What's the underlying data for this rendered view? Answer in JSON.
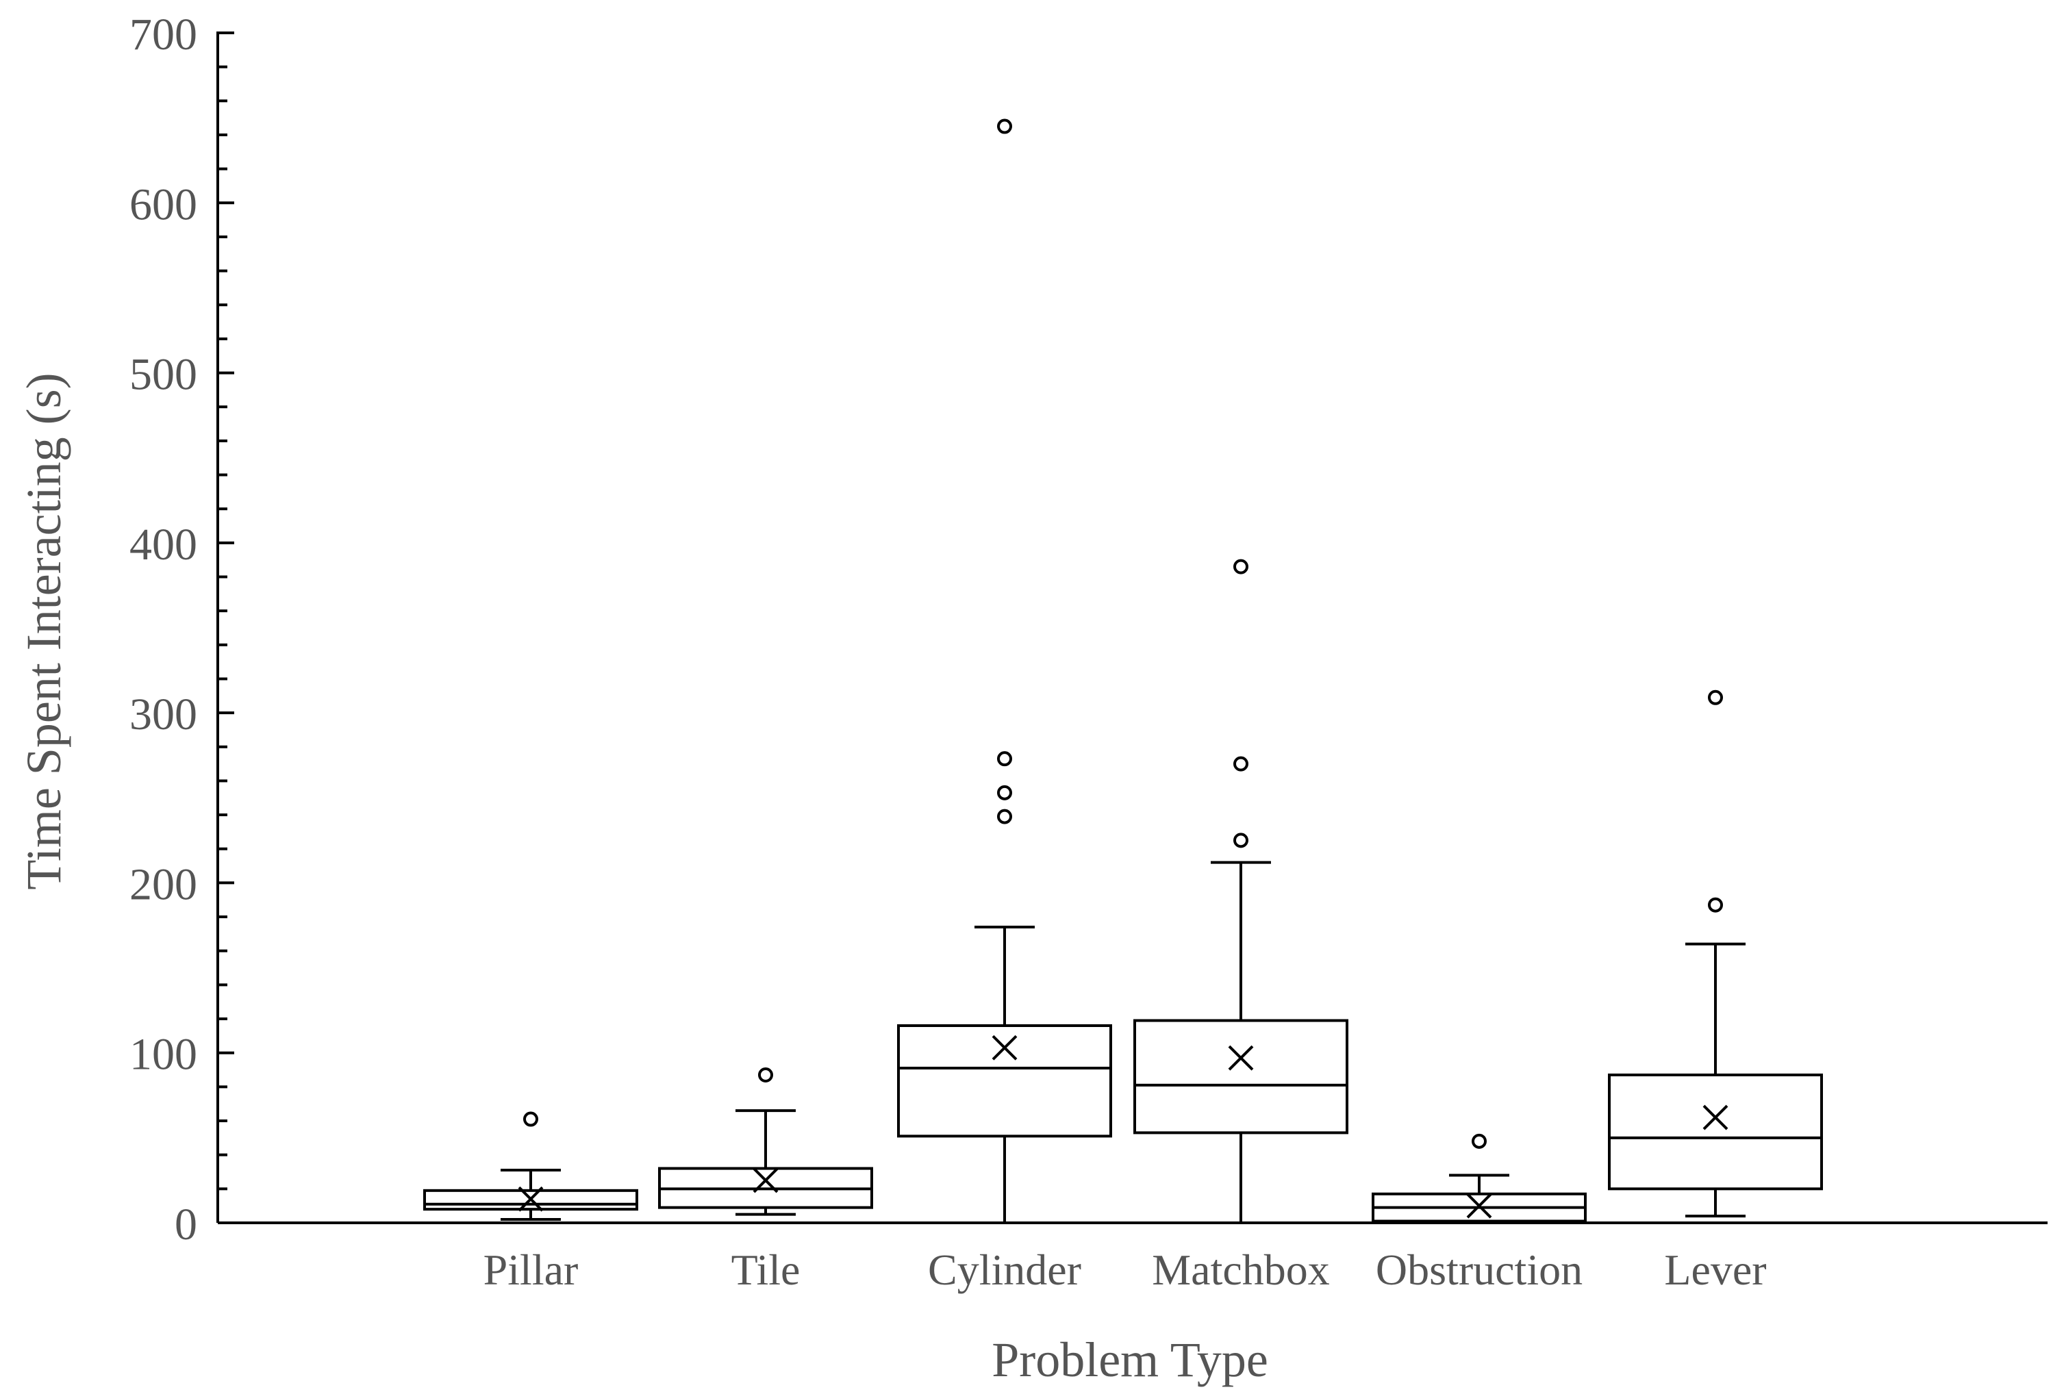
{
  "chart_data": {
    "type": "boxplot",
    "title": "",
    "xlabel": "Problem Type",
    "ylabel": "Time Spent Interacting (s)",
    "ylim": [
      0,
      700
    ],
    "yticks": [
      0,
      100,
      200,
      300,
      400,
      500,
      600,
      700
    ],
    "grid": false,
    "categories": [
      "Pillar",
      "Tile",
      "Cylinder",
      "Matchbox",
      "Obstruction",
      "Lever"
    ],
    "boxes": [
      {
        "category": "Pillar",
        "whisker_low": 2,
        "q1": 8,
        "median": 11,
        "q3": 19,
        "whisker_high": 31,
        "mean": 14,
        "outliers": [
          61
        ]
      },
      {
        "category": "Tile",
        "whisker_low": 5,
        "q1": 9,
        "median": 20,
        "q3": 32,
        "whisker_high": 66,
        "mean": 25,
        "outliers": [
          87
        ]
      },
      {
        "category": "Cylinder",
        "whisker_low": 0,
        "q1": 51,
        "median": 91,
        "q3": 116,
        "whisker_high": 174,
        "mean": 103,
        "outliers": [
          239,
          253,
          273,
          645
        ]
      },
      {
        "category": "Matchbox",
        "whisker_low": 0,
        "q1": 53,
        "median": 81,
        "q3": 119,
        "whisker_high": 212,
        "mean": 97,
        "outliers": [
          225,
          270,
          386
        ]
      },
      {
        "category": "Obstruction",
        "whisker_low": 0,
        "q1": 1,
        "median": 9,
        "q3": 17,
        "whisker_high": 28,
        "mean": 10,
        "outliers": [
          48
        ]
      },
      {
        "category": "Lever",
        "whisker_low": 4,
        "q1": 20,
        "median": 50,
        "q3": 87,
        "whisker_high": 164,
        "mean": 62,
        "outliers": [
          187,
          309
        ]
      }
    ]
  }
}
